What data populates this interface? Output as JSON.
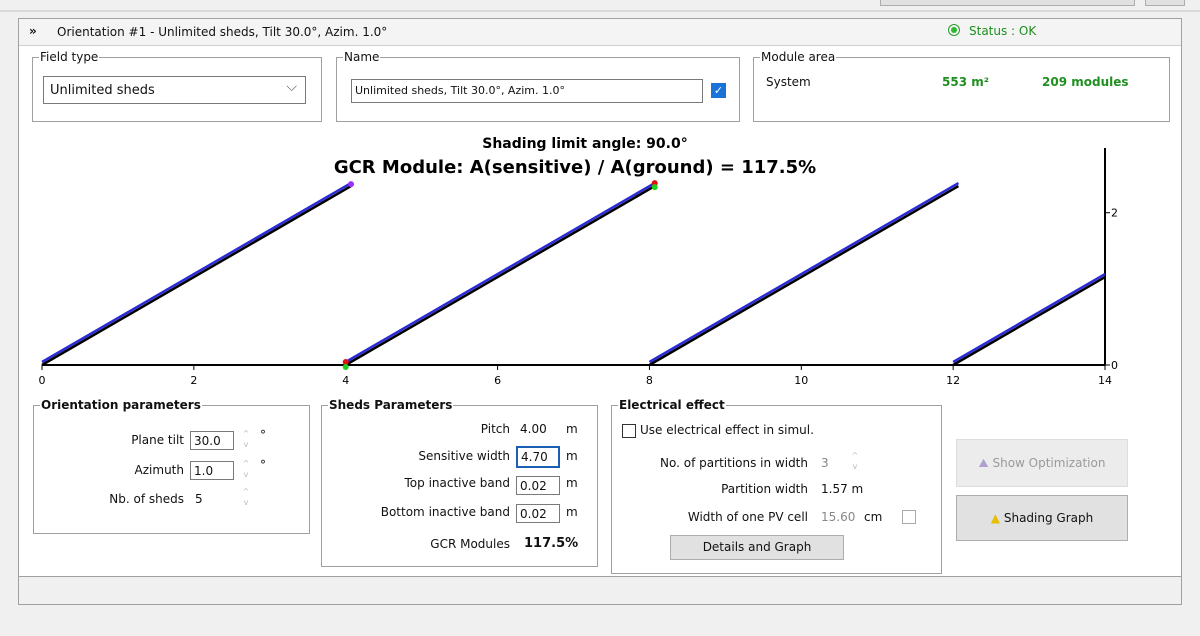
{
  "header": {
    "title": "Orientation #1 - Unlimited sheds, Tilt 30.0°, Azim. 1.0°",
    "status": "Status : OK"
  },
  "field_type": {
    "legend": "Field type",
    "value": "Unlimited sheds"
  },
  "name": {
    "legend": "Name",
    "value": "Unlimited sheds, Tilt 30.0°, Azim. 1.0°"
  },
  "module_area": {
    "legend": "Module area",
    "label": "System",
    "area": "553 m²",
    "modules": "209 modules"
  },
  "chart_data": {
    "type": "line",
    "title": "Shading limit angle:  90.0°",
    "subtitle": "GCR Module: A(sensitive) / A(ground) = 117.5%",
    "xlim": [
      0,
      14
    ],
    "ylim": [
      0,
      2.85
    ],
    "xticks": [
      0,
      2,
      4,
      6,
      8,
      10,
      12,
      14
    ],
    "yticks": [
      0,
      2
    ],
    "series": [
      {
        "color": "#2a2ad6",
        "x": [
          0,
          4.07
        ],
        "values": [
          0,
          2.35
        ]
      },
      {
        "color": "#2a2ad6",
        "x": [
          4,
          8.07
        ],
        "values": [
          0,
          2.35
        ]
      },
      {
        "color": "#2a2ad6",
        "x": [
          8,
          12.07
        ],
        "values": [
          0,
          2.35
        ]
      },
      {
        "color": "#2a2ad6",
        "x": [
          12,
          14
        ],
        "values": [
          0,
          1.155
        ]
      }
    ]
  },
  "orientation_parameters": {
    "legend": "Orientation parameters",
    "rows": [
      {
        "label": "Plane tilt",
        "value": "30.0",
        "unit": "°"
      },
      {
        "label": "Azimuth",
        "value": "1.0",
        "unit": "°"
      },
      {
        "label": "Nb. of sheds",
        "value": "5"
      }
    ]
  },
  "sheds_parameters": {
    "legend": "Sheds Parameters",
    "rows": [
      {
        "label": "Pitch",
        "value": "4.00",
        "unit": "m"
      },
      {
        "label": "Sensitive width",
        "value": "4.70",
        "unit": "m"
      },
      {
        "label": "Top inactive band",
        "value": "0.02",
        "unit": "m"
      },
      {
        "label": "Bottom inactive band",
        "value": "0.02",
        "unit": "m"
      },
      {
        "label": "GCR Modules",
        "value": "117.5%"
      }
    ]
  },
  "electrical_effect": {
    "legend": "Electrical effect",
    "checkbox": "Use electrical effect in simul.",
    "rows": [
      {
        "label": "No. of partitions in width",
        "value": "3"
      },
      {
        "label": "Partition width",
        "value": "1.57 m"
      },
      {
        "label": "Width of one PV cell",
        "value": "15.60",
        "unit": "cm"
      }
    ],
    "button": "Details and Graph"
  },
  "buttons": [
    "Show Optimization",
    "Shading Graph"
  ]
}
